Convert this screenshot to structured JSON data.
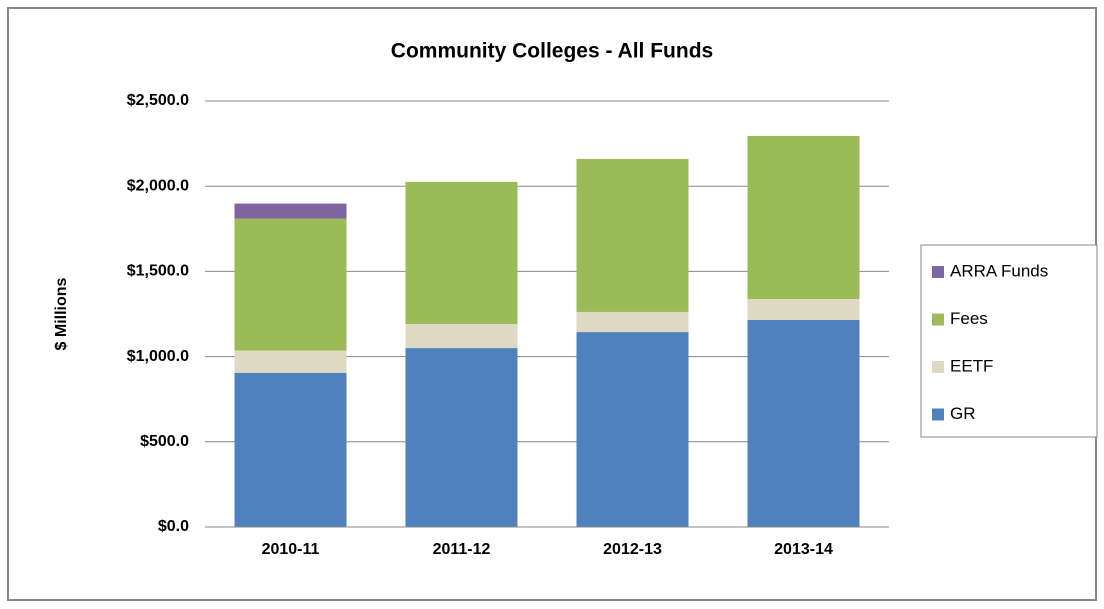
{
  "chart_data": {
    "type": "stacked_bar",
    "title": "Community Colleges - All Funds",
    "y_label": "$ Millions",
    "categories": [
      "2010-11",
      "2011-12",
      "2012-13",
      "2013-14"
    ],
    "series": [
      {
        "name": "GR",
        "color": "#4f81bd",
        "values": [
          905,
          1050,
          1144,
          1215
        ]
      },
      {
        "name": "EETF",
        "color": "#ddd9c3",
        "values": [
          130,
          141,
          118,
          123
        ]
      },
      {
        "name": "Fees",
        "color": "#9bbb59",
        "values": [
          775,
          834,
          898,
          957
        ]
      },
      {
        "name": "ARRA Funds",
        "color": "#8064a2",
        "values": [
          88,
          null,
          null,
          null
        ]
      }
    ],
    "ylim": [
      0,
      2500
    ],
    "yticks": [
      {
        "value": 0,
        "label": "$0.0"
      },
      {
        "value": 500,
        "label": "$500.0"
      },
      {
        "value": 1000,
        "label": "$1,000.0"
      },
      {
        "value": 1500,
        "label": "$1,500.0"
      },
      {
        "value": 2000,
        "label": "$2,000.0"
      },
      {
        "value": 2500,
        "label": "$2,500.0"
      }
    ],
    "grid": true,
    "legend": "right"
  }
}
